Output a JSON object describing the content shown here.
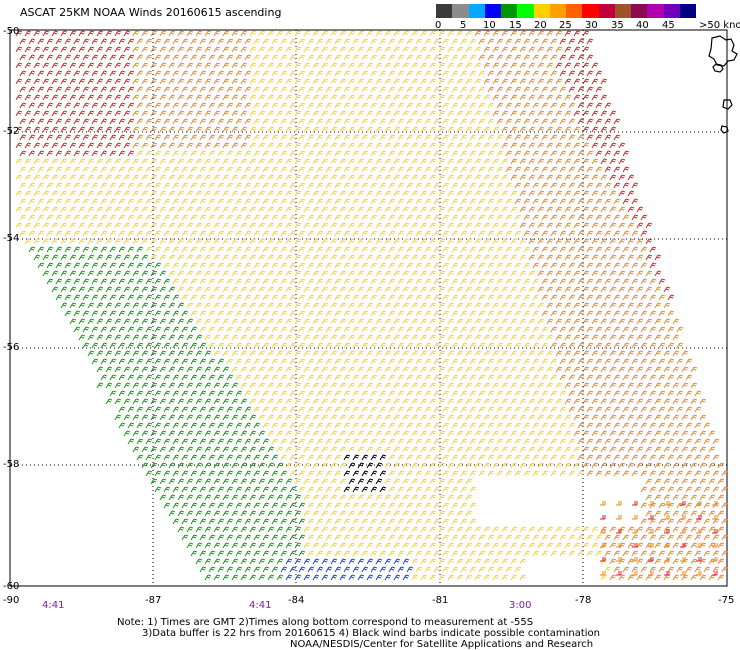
{
  "title": "ASCAT 25KM NOAA Winds 20160615 ascending",
  "legend": {
    "labels": [
      "0",
      "5",
      "10",
      "15",
      "20",
      "25",
      "30",
      "35",
      "40",
      "45"
    ],
    "unit_label": ">50 knots",
    "colors": [
      "#3a3a3a",
      "#8c8c8c",
      "#00a8ff",
      "#0000ff",
      "#009600",
      "#00ff00",
      "#ffd000",
      "#ffa000",
      "#ff6000",
      "#ff0000",
      "#c0003a",
      "#a0522d",
      "#8b0a50",
      "#b000b0",
      "#7000c0",
      "#000080"
    ]
  },
  "lat_labels": [
    "-50",
    "-52",
    "-54",
    "-56",
    "-58",
    "-60"
  ],
  "lon_labels": [
    "-90",
    "-87",
    "-84",
    "-81",
    "-78",
    "-75"
  ],
  "time_labels": [
    "4:41",
    "4:41",
    "3:00"
  ],
  "notes": {
    "line1": "Note: 1) Times are GMT 2)Times along bottom correspond to measurement at -55S",
    "line2": "3)Data buffer is 22 hrs from 20160615 4) Black wind barbs indicate possible contamination",
    "line3": "NOAA/NESDIS/Center for Satellite Applications and Research"
  },
  "map": {
    "lat_range": [
      -60,
      -50
    ],
    "lon_range": [
      -90,
      -75
    ],
    "gridlines": true,
    "barb_colors": {
      "green": "#1a9a1a",
      "yellow": "#f2dc1a",
      "orange": "#f08a1a",
      "red": "#e0202a",
      "blue": "#1e3cff",
      "black": "#000000"
    }
  }
}
